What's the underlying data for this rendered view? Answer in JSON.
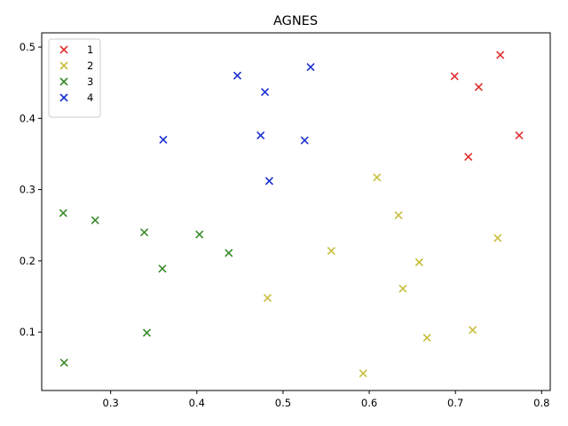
{
  "chart_data": {
    "type": "scatter",
    "title": "AGNES",
    "xlabel": "",
    "ylabel": "",
    "xlim": [
      0.22,
      0.81
    ],
    "ylim": [
      0.018,
      0.52
    ],
    "xticks": [
      "0.3",
      "0.4",
      "0.5",
      "0.6",
      "0.7",
      "0.8"
    ],
    "xtick_values": [
      0.3,
      0.4,
      0.5,
      0.6,
      0.7,
      0.8
    ],
    "yticks": [
      "0.1",
      "0.2",
      "0.3",
      "0.4",
      "0.5"
    ],
    "ytick_values": [
      0.1,
      0.2,
      0.3,
      0.4,
      0.5
    ],
    "grid": false,
    "legend_position": "top-left",
    "marker": "x",
    "series": [
      {
        "name": "1",
        "color": "#e03030",
        "points": [
          [
            0.699,
            0.459
          ],
          [
            0.727,
            0.444
          ],
          [
            0.752,
            0.489
          ],
          [
            0.715,
            0.346
          ],
          [
            0.774,
            0.376
          ]
        ]
      },
      {
        "name": "2",
        "color": "#c8be3c",
        "points": [
          [
            0.609,
            0.317
          ],
          [
            0.634,
            0.264
          ],
          [
            0.556,
            0.214
          ],
          [
            0.749,
            0.232
          ],
          [
            0.658,
            0.198
          ],
          [
            0.639,
            0.161
          ],
          [
            0.482,
            0.148
          ],
          [
            0.72,
            0.103
          ],
          [
            0.667,
            0.092
          ],
          [
            0.593,
            0.042
          ]
        ]
      },
      {
        "name": "3",
        "color": "#3a8a2a",
        "points": [
          [
            0.245,
            0.267
          ],
          [
            0.282,
            0.257
          ],
          [
            0.339,
            0.24
          ],
          [
            0.403,
            0.237
          ],
          [
            0.437,
            0.211
          ],
          [
            0.36,
            0.189
          ],
          [
            0.342,
            0.099
          ],
          [
            0.246,
            0.057
          ]
        ]
      },
      {
        "name": "4",
        "color": "#1a2fd0",
        "points": [
          [
            0.532,
            0.472
          ],
          [
            0.447,
            0.46
          ],
          [
            0.479,
            0.437
          ],
          [
            0.361,
            0.37
          ],
          [
            0.474,
            0.376
          ],
          [
            0.525,
            0.369
          ],
          [
            0.484,
            0.312
          ]
        ]
      }
    ]
  }
}
